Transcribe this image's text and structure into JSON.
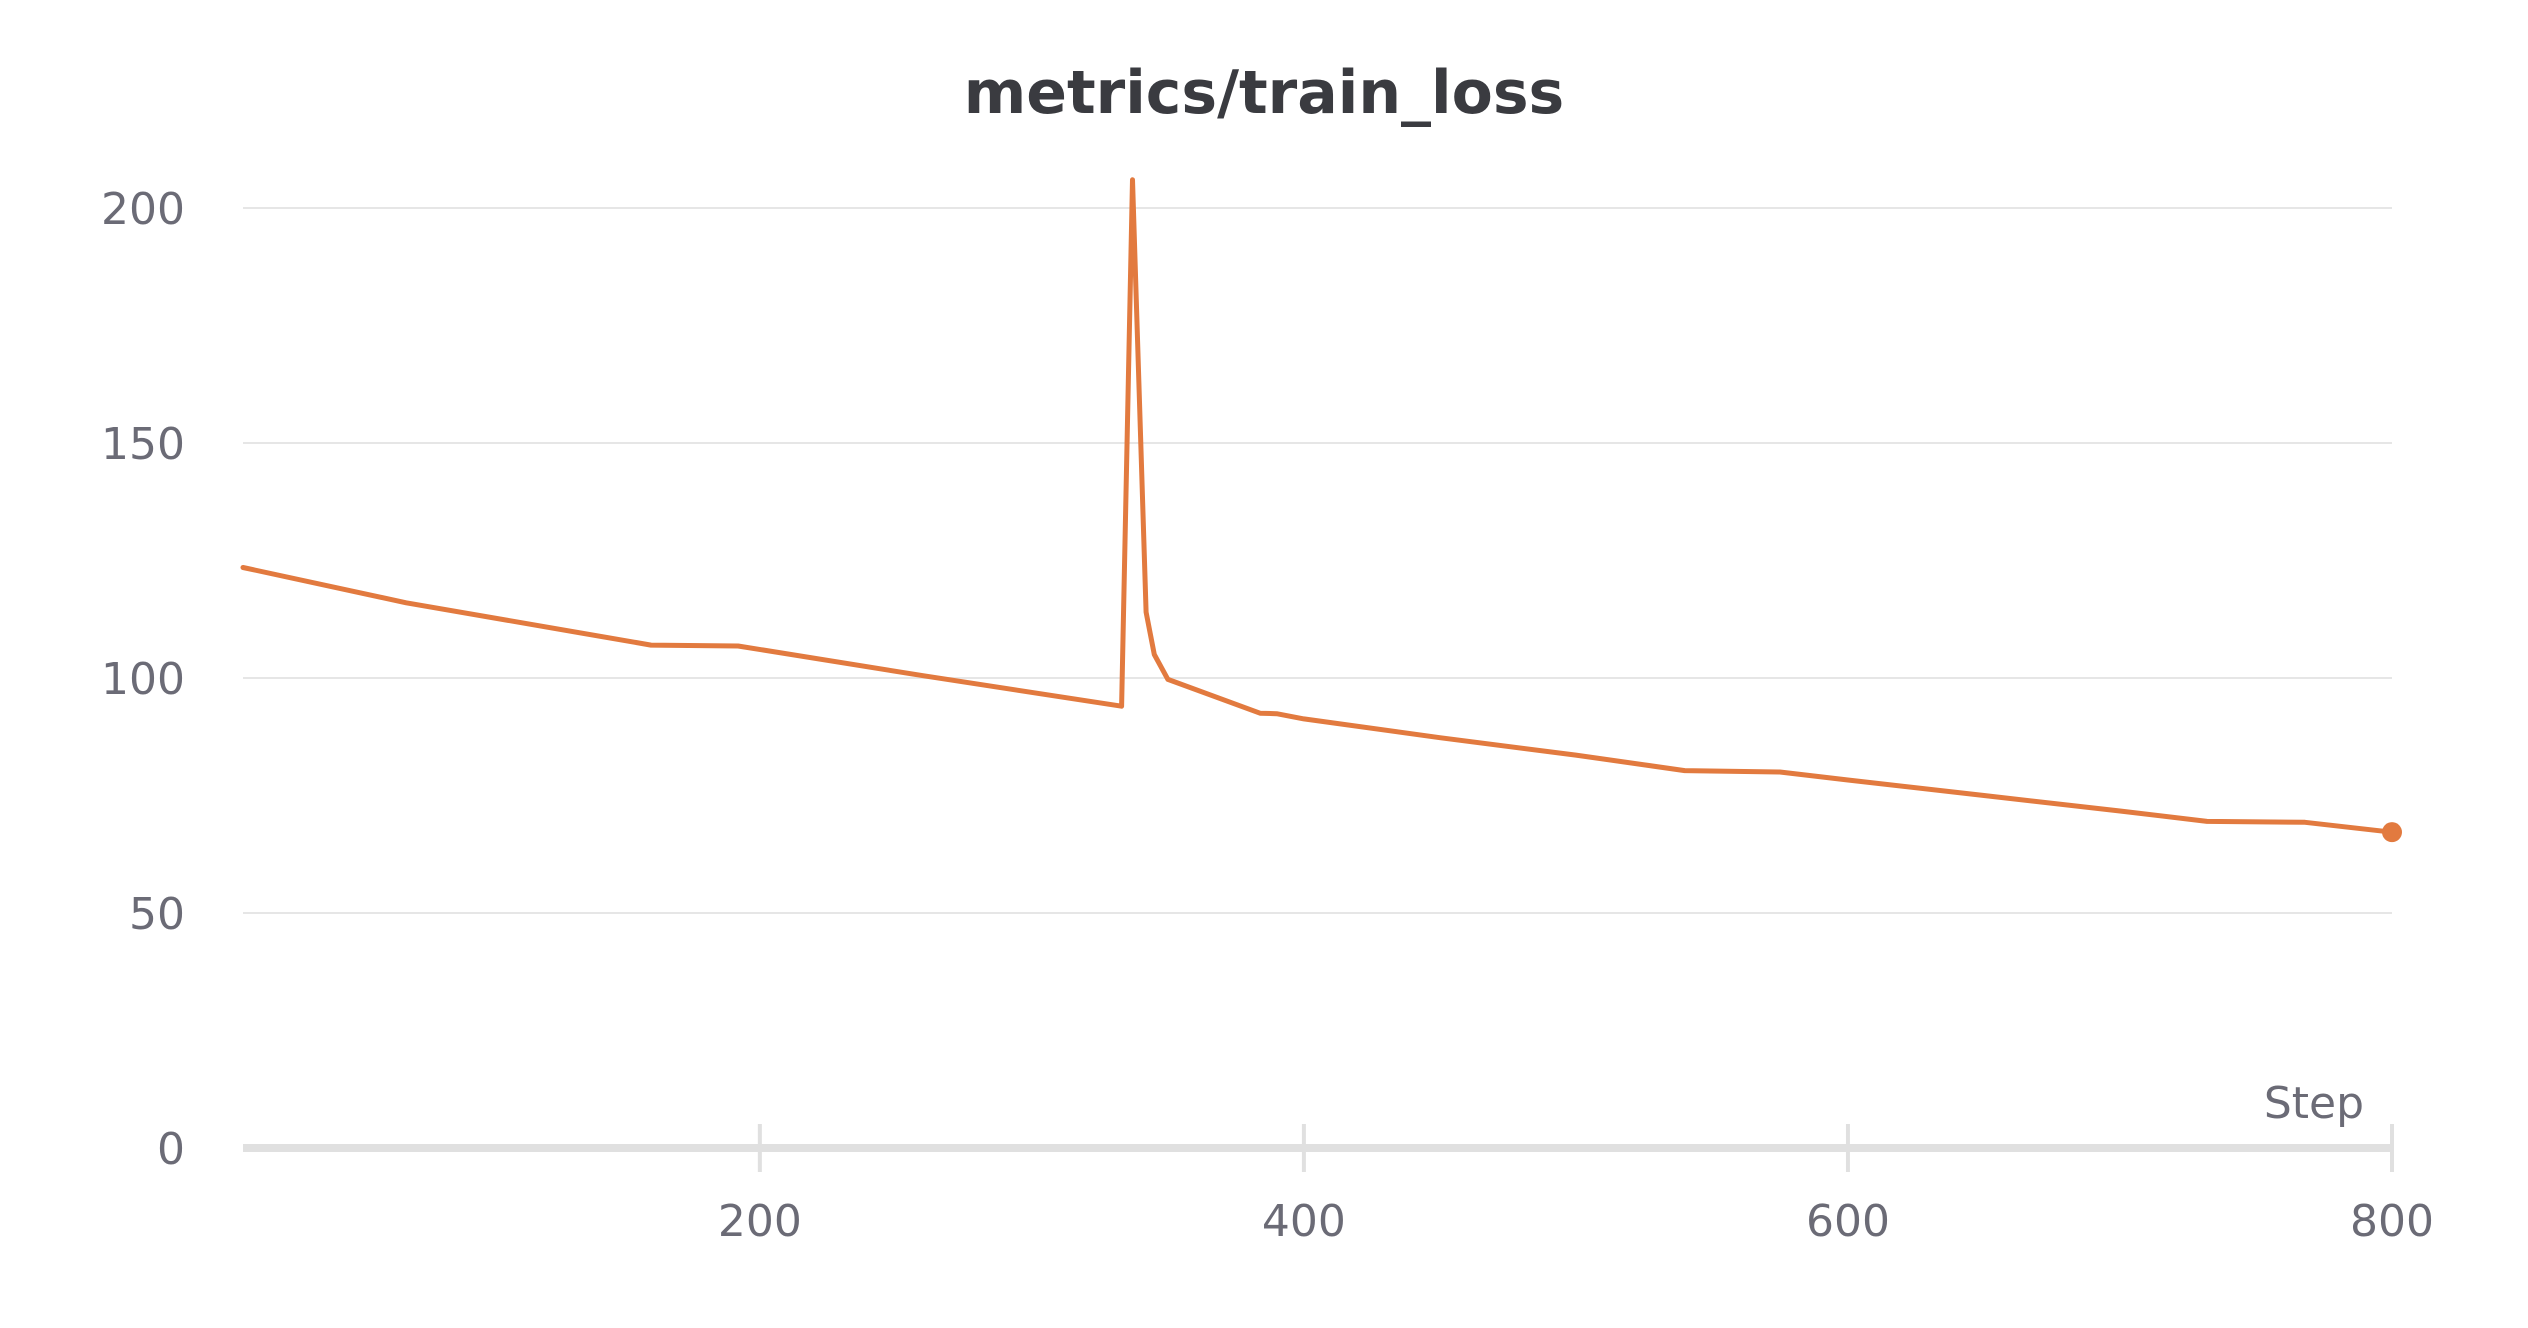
{
  "chart_data": {
    "type": "line",
    "title": "metrics/train_loss",
    "xlabel": "Step",
    "ylabel": "",
    "xlim": [
      10,
      800
    ],
    "ylim": [
      0,
      200
    ],
    "x_ticks": [
      200,
      400,
      600,
      800
    ],
    "y_ticks": [
      0,
      50,
      100,
      150,
      200
    ],
    "grid": true,
    "colors": {
      "line": "#e27a3f",
      "grid": "#e6e6e6",
      "axis": "#e0e0e0",
      "text": "#6b6b76",
      "title": "#3a3b40"
    },
    "series": [
      {
        "x": [
          10,
          70,
          160,
          192,
          260,
          333,
          337,
          342,
          345,
          350,
          384,
          390,
          400,
          450,
          500,
          540,
          575,
          600,
          650,
          700,
          732,
          768,
          800
        ],
        "y": [
          123.5,
          116,
          107,
          106.8,
          100.5,
          94,
          206,
          114,
          105,
          99.7,
          92.5,
          92.4,
          91.3,
          87.3,
          83.6,
          80.3,
          80,
          78.3,
          75,
          71.7,
          69.5,
          69.3,
          67.2
        ]
      }
    ]
  }
}
